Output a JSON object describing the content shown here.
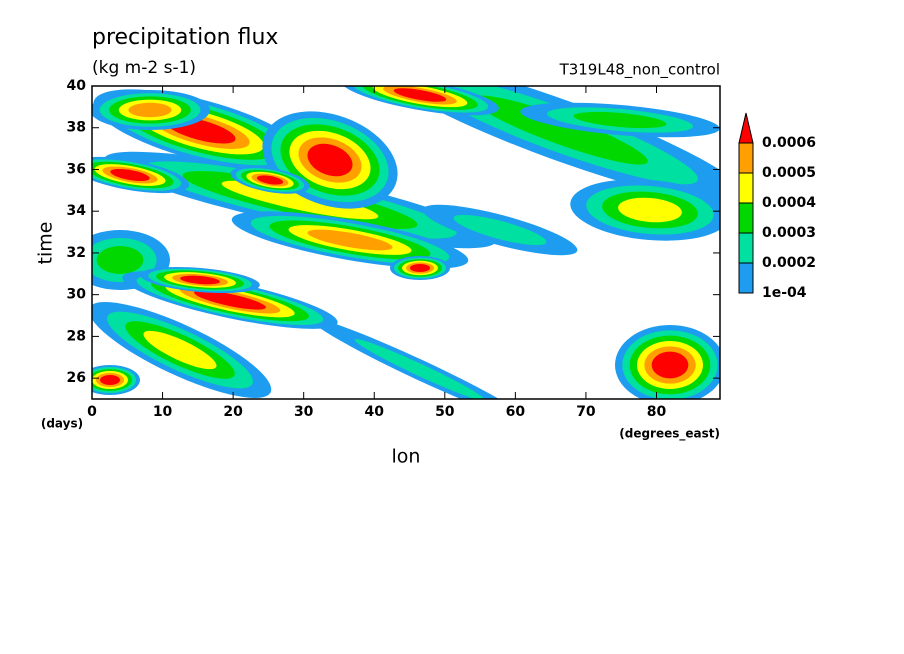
{
  "chart_data": {
    "type": "contour",
    "title": "precipitation flux",
    "subtitle": "(kg m-2 s-1)",
    "annotation": "T319L48_non_control",
    "x_label": "lon",
    "x_unit": "(degrees_east)",
    "y_label": "time",
    "y_unit": "(days)",
    "xlim": [
      0,
      89
    ],
    "ylim": [
      25,
      40
    ],
    "xticks": [
      0,
      10,
      20,
      30,
      40,
      50,
      60,
      70,
      80
    ],
    "yticks": [
      26,
      28,
      30,
      32,
      34,
      36,
      38,
      40
    ],
    "levels": [
      {
        "value": 0.0001,
        "label": "1e-04"
      },
      0.0002,
      0.0003,
      0.0004,
      0.0005,
      0.0006
    ],
    "colors": [
      "#1e9cf0",
      "#00e0a0",
      "#00d800",
      "#ffff00",
      "#ffa000",
      "#ff0000"
    ]
  }
}
